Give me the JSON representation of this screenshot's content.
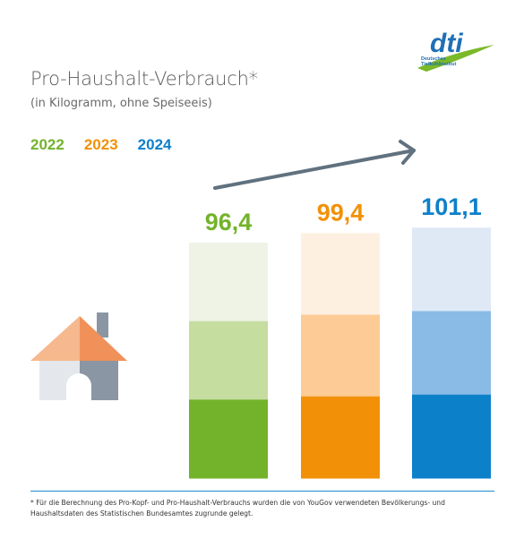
{
  "brand": {
    "logo_text": "dti",
    "logo_caption_line1": "Deutsches",
    "logo_caption_line2": "Tiefkühlinstitut"
  },
  "header": {
    "title": "Pro-Haushalt-Verbrauch*",
    "subtitle": "(in Kilogramm, ohne Speiseeis)"
  },
  "icons": {
    "house": "house-icon",
    "trend_arrow": "arrow-up-right-icon"
  },
  "footnote": "* Für die Berechnung des Pro-Kopf- und Pro-Haushalt-Verbrauchs wurden die von YouGov verwendeten Bevölkerungs- und Haushaltsdaten des Statistischen Bundesamtes zugrunde gelegt.",
  "colors": {
    "2022": [
      "#eef3e6",
      "#c6dda0",
      "#73b32b"
    ],
    "2023": [
      "#fdf0e1",
      "#fdcb95",
      "#f29107"
    ],
    "2024": [
      "#dfe9f6",
      "#89bbe6",
      "#0d80ca"
    ],
    "arrow": "#60717f",
    "logo_blue": "#1f6fb6",
    "logo_green": "#7ab929"
  },
  "chart_data": {
    "type": "bar",
    "categories": [
      "2022",
      "2023",
      "2024"
    ],
    "values": [
      96.4,
      99.4,
      101.1
    ],
    "value_labels": [
      "96,4",
      "99,4",
      "101,1"
    ],
    "legend": [
      "2022",
      "2023",
      "2024"
    ],
    "legend_placement": "top-left",
    "ylabel": "",
    "xlabel": "",
    "grid": false,
    "unit": "kg",
    "trend_arrow": true
  }
}
